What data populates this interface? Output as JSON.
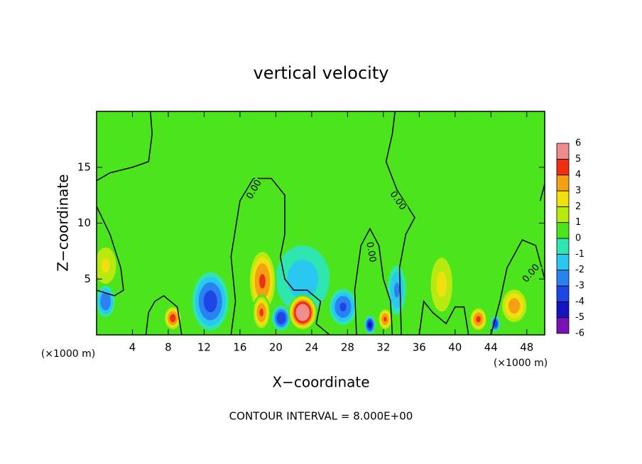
{
  "chart_data": {
    "type": "contour",
    "title": "vertical velocity",
    "x_label": "X−coordinate",
    "y_label": "Z−coordinate",
    "x_unit": "(×1000 m)",
    "x_unit_right": "(×1000 m)",
    "footnote": "CONTOUR INTERVAL = 8.000E+00",
    "xlim": [
      0,
      50
    ],
    "ylim": [
      0,
      20
    ],
    "xticks": [
      4,
      8,
      12,
      16,
      20,
      24,
      28,
      32,
      36,
      40,
      44,
      48
    ],
    "yticks": [
      5,
      10,
      15
    ],
    "background_value": 0.5,
    "colorbar": {
      "ticks": [
        -6,
        -5,
        -4,
        -3,
        -2,
        -1,
        0,
        1,
        2,
        3,
        4,
        5,
        6
      ],
      "colors": [
        "#7a10b8",
        "#1414c0",
        "#1e46e6",
        "#2a82f2",
        "#28c8f0",
        "#30e6b0",
        "#4ce41c",
        "#b8ea10",
        "#f0e010",
        "#f4a010",
        "#f03010",
        "#f08c8c"
      ]
    },
    "features": [
      {
        "x": 1,
        "z": 6.2,
        "value": 2.2,
        "rx": 1.6,
        "rz": 2.2
      },
      {
        "x": 1,
        "z": 3,
        "value": -3,
        "rx": 1,
        "rz": 1.4
      },
      {
        "x": 8.5,
        "z": 1.5,
        "value": 4.5,
        "rx": 1,
        "rz": 1.1
      },
      {
        "x": 12.7,
        "z": 3,
        "value": -3.5,
        "rx": 2,
        "rz": 2.6
      },
      {
        "x": 23,
        "z": 5,
        "value": -1.5,
        "rx": 3,
        "rz": 3
      },
      {
        "x": 18.5,
        "z": 4.8,
        "value": 4.2,
        "rx": 1.6,
        "rz": 3
      },
      {
        "x": 18.4,
        "z": 2,
        "value": 4.2,
        "rx": 1,
        "rz": 1.6
      },
      {
        "x": 20.6,
        "z": 1.5,
        "value": -4,
        "rx": 1,
        "rz": 1.1
      },
      {
        "x": 23,
        "z": 2,
        "value": 6.5,
        "rx": 1.6,
        "rz": 1.6
      },
      {
        "x": 27.5,
        "z": 2.5,
        "value": -3.2,
        "rx": 1.5,
        "rz": 1.6
      },
      {
        "x": 30.5,
        "z": 0.9,
        "value": -4.5,
        "rx": 0.6,
        "rz": 0.8
      },
      {
        "x": 32.2,
        "z": 1.4,
        "value": 4.2,
        "rx": 0.8,
        "rz": 1
      },
      {
        "x": 33.5,
        "z": 4,
        "value": -2.2,
        "rx": 1,
        "rz": 2.2
      },
      {
        "x": 38.5,
        "z": 4.5,
        "value": 2.3,
        "rx": 1.6,
        "rz": 3.2
      },
      {
        "x": 42.6,
        "z": 1.4,
        "value": 4.3,
        "rx": 1,
        "rz": 1.1
      },
      {
        "x": 44.5,
        "z": 1,
        "value": -4,
        "rx": 0.5,
        "rz": 0.7
      },
      {
        "x": 46.6,
        "z": 2.6,
        "value": 3.6,
        "rx": 1.6,
        "rz": 1.7
      }
    ],
    "contours": [
      {
        "level": 0,
        "points": [
          [
            0,
            13.8
          ],
          [
            1.5,
            14.5
          ],
          [
            4,
            15
          ],
          [
            5.8,
            15.5
          ],
          [
            6.2,
            18
          ],
          [
            6,
            20
          ]
        ]
      },
      {
        "level": 0,
        "points": [
          [
            0,
            11.5
          ],
          [
            1.5,
            9
          ],
          [
            2.7,
            6
          ],
          [
            3,
            4
          ],
          [
            2,
            3.5
          ],
          [
            0,
            4
          ]
        ]
      },
      {
        "level": 0,
        "points": [
          [
            5.5,
            0
          ],
          [
            5.8,
            2
          ],
          [
            6.5,
            3
          ],
          [
            7.5,
            3.5
          ],
          [
            9,
            2.5
          ],
          [
            9.5,
            0
          ]
        ]
      },
      {
        "level": 0,
        "points": [
          [
            15,
            0
          ],
          [
            15.5,
            3
          ],
          [
            15,
            7
          ],
          [
            16,
            12
          ],
          [
            17.5,
            14
          ],
          [
            19.5,
            14
          ],
          [
            21,
            12.5
          ],
          [
            21,
            9
          ],
          [
            20.5,
            7
          ],
          [
            21,
            5
          ],
          [
            22,
            4
          ],
          [
            23.5,
            4
          ],
          [
            25,
            3
          ],
          [
            24.5,
            1
          ],
          [
            26,
            0
          ]
        ]
      },
      {
        "level": 0,
        "points": [
          [
            29,
            0
          ],
          [
            28.8,
            4
          ],
          [
            29.5,
            8
          ],
          [
            30.5,
            9.5
          ],
          [
            31.5,
            8
          ],
          [
            32,
            5
          ],
          [
            32.8,
            3
          ],
          [
            33,
            0
          ]
        ]
      },
      {
        "level": 0,
        "points": [
          [
            34,
            0
          ],
          [
            33.8,
            6
          ],
          [
            34.5,
            9
          ],
          [
            35.5,
            10.5
          ],
          [
            33.5,
            13
          ],
          [
            32.3,
            15.5
          ],
          [
            33,
            18
          ],
          [
            33.3,
            20
          ]
        ]
      },
      {
        "level": 0,
        "points": [
          [
            36,
            0
          ],
          [
            36.5,
            3
          ],
          [
            37.5,
            2
          ],
          [
            39,
            1
          ],
          [
            40,
            2.5
          ],
          [
            41,
            2.5
          ],
          [
            41.5,
            0
          ]
        ]
      },
      {
        "level": 0,
        "points": [
          [
            44,
            0
          ],
          [
            45,
            3
          ],
          [
            45.8,
            6
          ],
          [
            47.5,
            8.5
          ],
          [
            49,
            8
          ],
          [
            50,
            5
          ]
        ]
      },
      {
        "level": 0,
        "points": [
          [
            49.5,
            12
          ],
          [
            50,
            13.5
          ]
        ]
      }
    ],
    "contour_labels": [
      {
        "text": "0.00",
        "x": 17.6,
        "z": 13,
        "angle": -60
      },
      {
        "text": "0.00",
        "x": 33.6,
        "z": 12,
        "angle": 55
      },
      {
        "text": "0.00",
        "x": 30.6,
        "z": 7.4,
        "angle": 80
      },
      {
        "text": "0.00",
        "x": 48.5,
        "z": 5.5,
        "angle": -50
      }
    ]
  }
}
